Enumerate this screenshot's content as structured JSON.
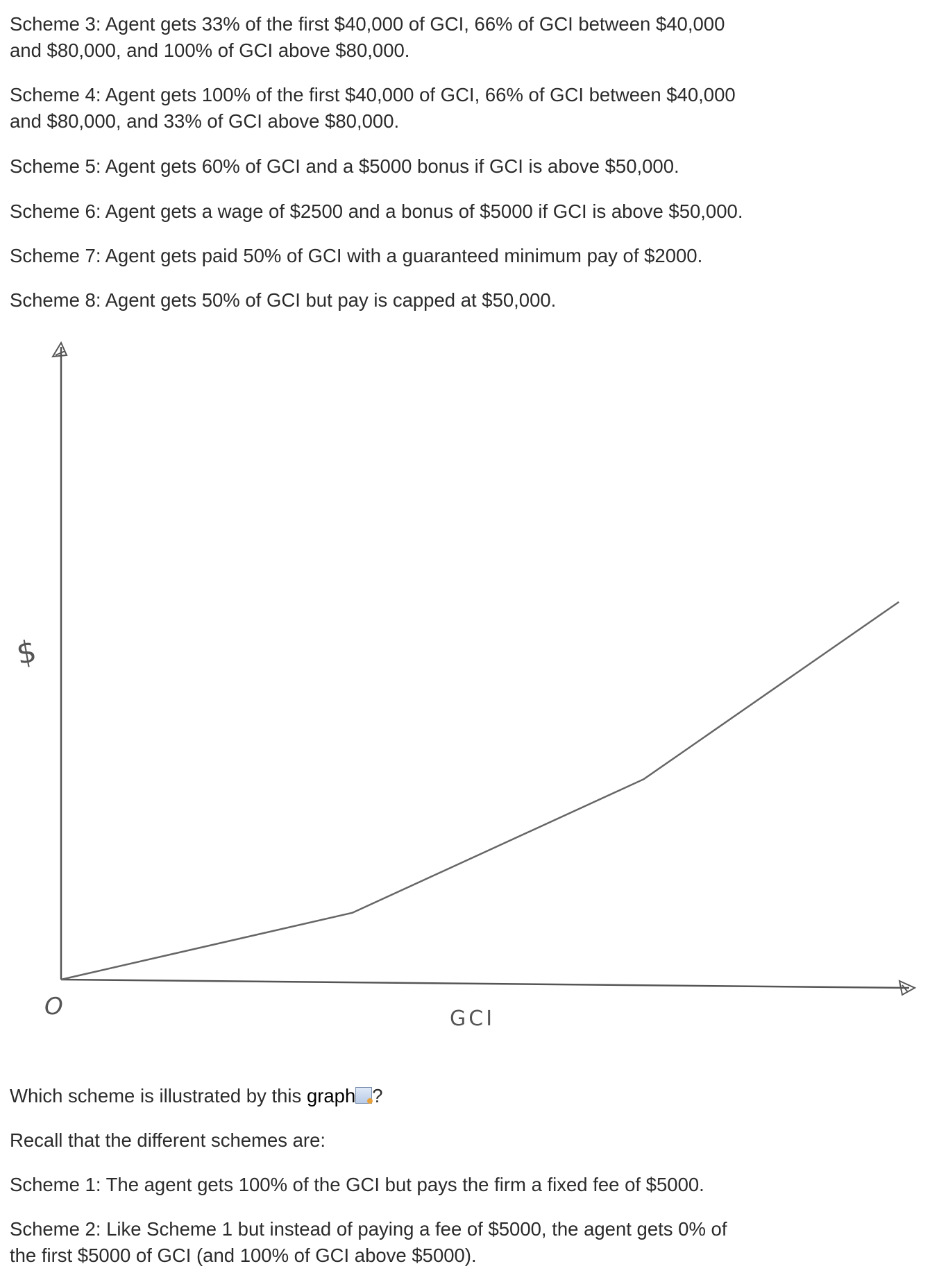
{
  "top_schemes": [
    {
      "line1": "Scheme 3: Agent gets 33% of the first $40,000 of GCI, 66% of GCI between $40,000",
      "line2": "and $80,000, and 100% of GCI above $80,000."
    },
    {
      "line1": "Scheme 4: Agent gets 100% of the first $40,000 of GCI, 66% of GCI between $40,000",
      "line2": "and $80,000, and 33% of GCI above $80,000."
    },
    {
      "line1": "Scheme 5: Agent gets 60% of GCI and a $5000 bonus if GCI is above $50,000."
    },
    {
      "line1": "Scheme 6: Agent gets a wage of $2500 and a bonus of $5000 if GCI is above $50,000."
    },
    {
      "line1": "Scheme 7: Agent gets paid 50% of GCI with a guaranteed minimum pay of $2000."
    },
    {
      "line1": "Scheme 8: Agent gets 50% of GCI but pay is capped at $50,000."
    }
  ],
  "chart_data": {
    "type": "line",
    "title": "",
    "xlabel": "GCI",
    "ylabel": "$",
    "origin_label": "O",
    "grid": false,
    "style": "hand-drawn sketch, no tick labels",
    "line_color": "#666666",
    "series": [
      {
        "x": [
          0,
          40000,
          80000,
          115000
        ],
        "y": [
          0,
          13200,
          39600,
          74600
        ]
      }
    ],
    "xlim": [
      0,
      125000
    ],
    "ylim": [
      0,
      125000
    ]
  },
  "question": {
    "prefix": "Which scheme is illustrated by this ",
    "link": "graph",
    "suffix": "?",
    "icon": "graph-preview-icon"
  },
  "recall": "Recall that the different schemes are:",
  "bottom_schemes": [
    {
      "line1": "Scheme 1: The agent gets 100% of the GCI but pays the firm a fixed fee of $5000."
    },
    {
      "line1": "Scheme 2: Like Scheme 1 but instead of paying a fee of $5000, the agent gets 0% of",
      "line2": "the first $5000 of GCI (and 100% of GCI above $5000)."
    }
  ]
}
